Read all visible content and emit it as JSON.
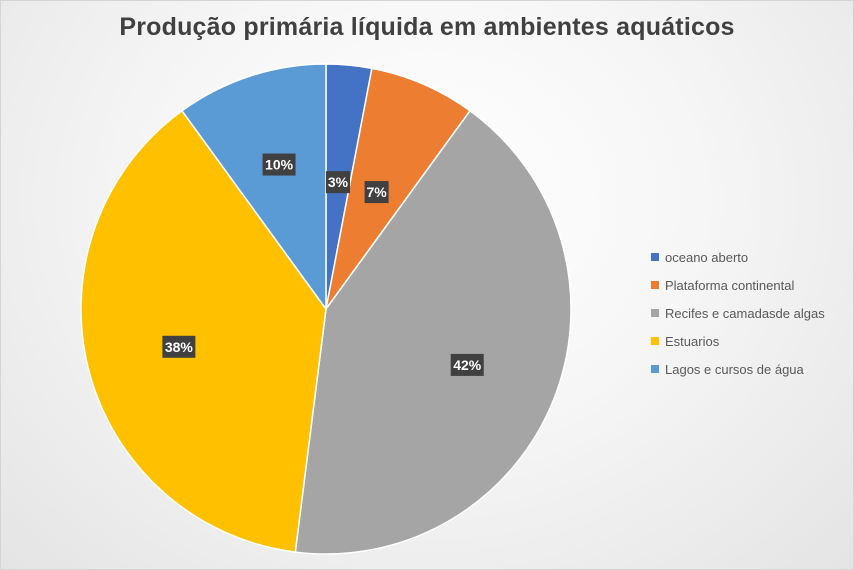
{
  "chart_data": {
    "type": "pie",
    "title": "Produção primária líquida em ambientes aquáticos",
    "categories": [
      "oceano aberto",
      "Plataforma continental",
      "Recifes e camadasde algas",
      "Estuarios",
      "Lagos e cursos de água"
    ],
    "values": [
      3,
      7,
      42,
      38,
      10
    ],
    "data_labels": [
      "3%",
      "7%",
      "42%",
      "38%",
      "10%"
    ],
    "colors": [
      "#4472C4",
      "#ED7D31",
      "#A5A5A5",
      "#FFC000",
      "#5B9BD5"
    ],
    "legend_position": "right",
    "start_angle": "top, clockwise"
  }
}
